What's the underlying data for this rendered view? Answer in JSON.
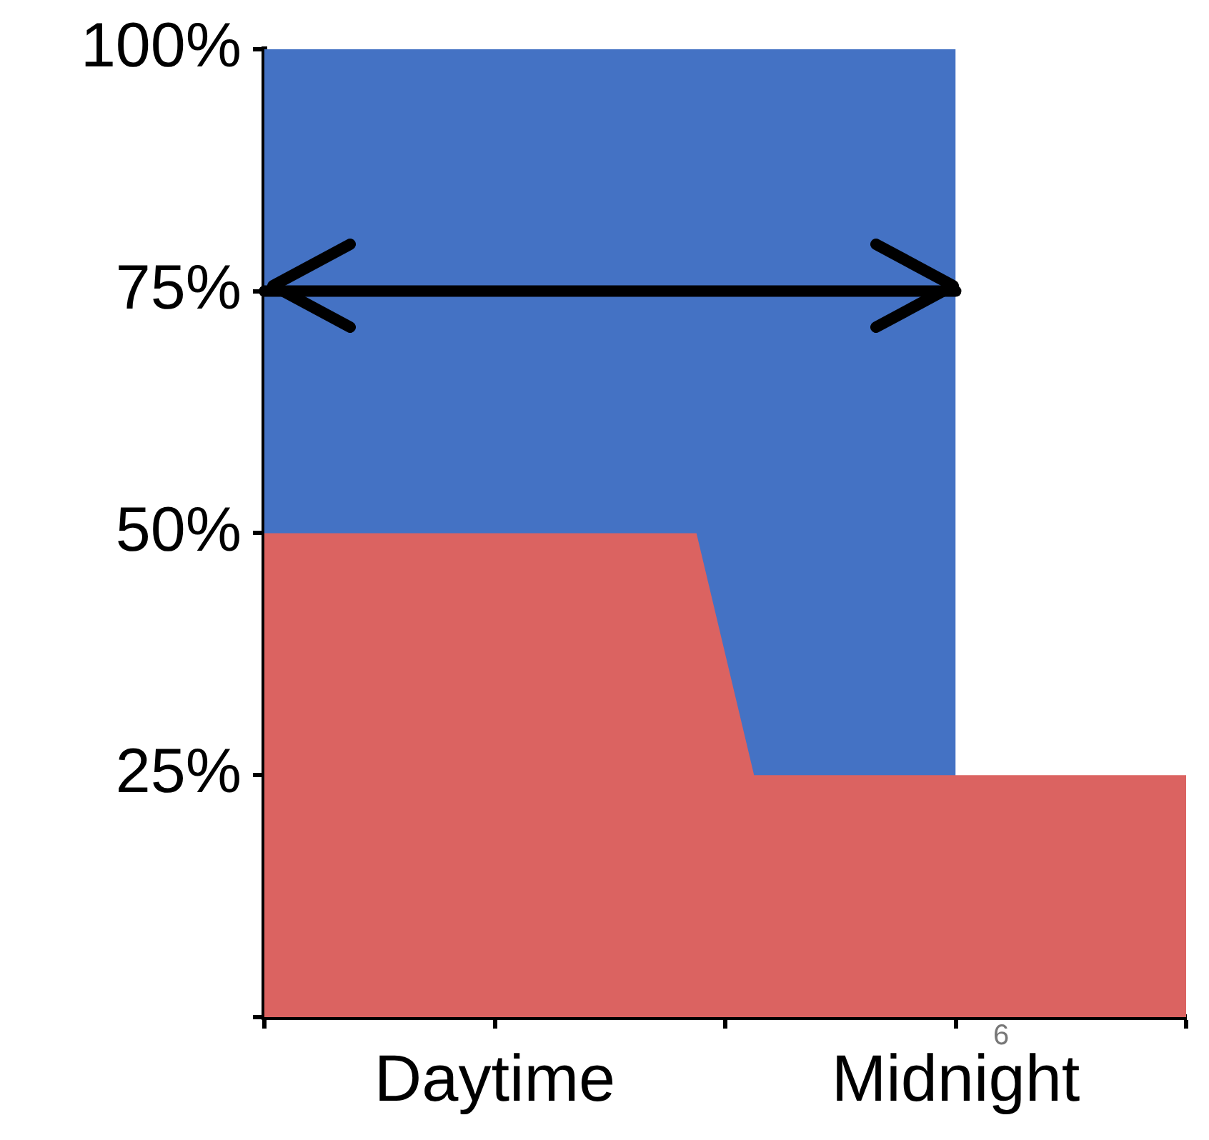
{
  "chart_data": {
    "type": "area",
    "categories": [
      null,
      null,
      null,
      null,
      null,
      null,
      null,
      null,
      "Daytime",
      null,
      null,
      null,
      null,
      null,
      null,
      null,
      null,
      null,
      null,
      null,
      null,
      null,
      null,
      null,
      "Midnight",
      null,
      null,
      null,
      null,
      null,
      null,
      null,
      null
    ],
    "ylim": [
      0,
      100
    ],
    "yticks": [
      {
        "value": 0,
        "label": null
      },
      {
        "value": 25,
        "label": "25%"
      },
      {
        "value": 50,
        "label": "50%"
      },
      {
        "value": 75,
        "label": "75%"
      },
      {
        "value": 100,
        "label": "100%"
      }
    ],
    "series": [
      {
        "color": "#4472c4",
        "values": [
          100,
          100,
          100,
          100,
          100,
          100,
          100,
          100,
          100,
          100,
          100,
          100,
          100,
          100,
          100,
          100,
          100,
          100,
          100,
          100,
          100,
          100,
          100,
          100,
          100,
          null,
          null,
          null,
          null,
          null,
          null,
          null,
          null
        ]
      },
      {
        "color": "#db6361",
        "values": [
          50,
          50,
          50,
          50,
          50,
          50,
          50,
          50,
          50,
          50,
          50,
          50,
          50,
          50,
          50,
          50,
          37.5,
          25,
          25,
          25,
          25,
          25,
          25,
          25,
          25,
          25,
          25,
          25,
          25,
          25,
          25,
          25,
          25
        ]
      },
      {
        "type": "line",
        "color": "#000000",
        "values": [
          75,
          75,
          75,
          75,
          75,
          75,
          75,
          75,
          75,
          75,
          75,
          75,
          75,
          75,
          75,
          75,
          75,
          75,
          75,
          75,
          75,
          75,
          75,
          75,
          75,
          null,
          null,
          null,
          null,
          null,
          null,
          null,
          null
        ]
      }
    ],
    "annotations": [
      "6"
    ],
    "grid": false,
    "legend": false,
    "marker": "none"
  }
}
